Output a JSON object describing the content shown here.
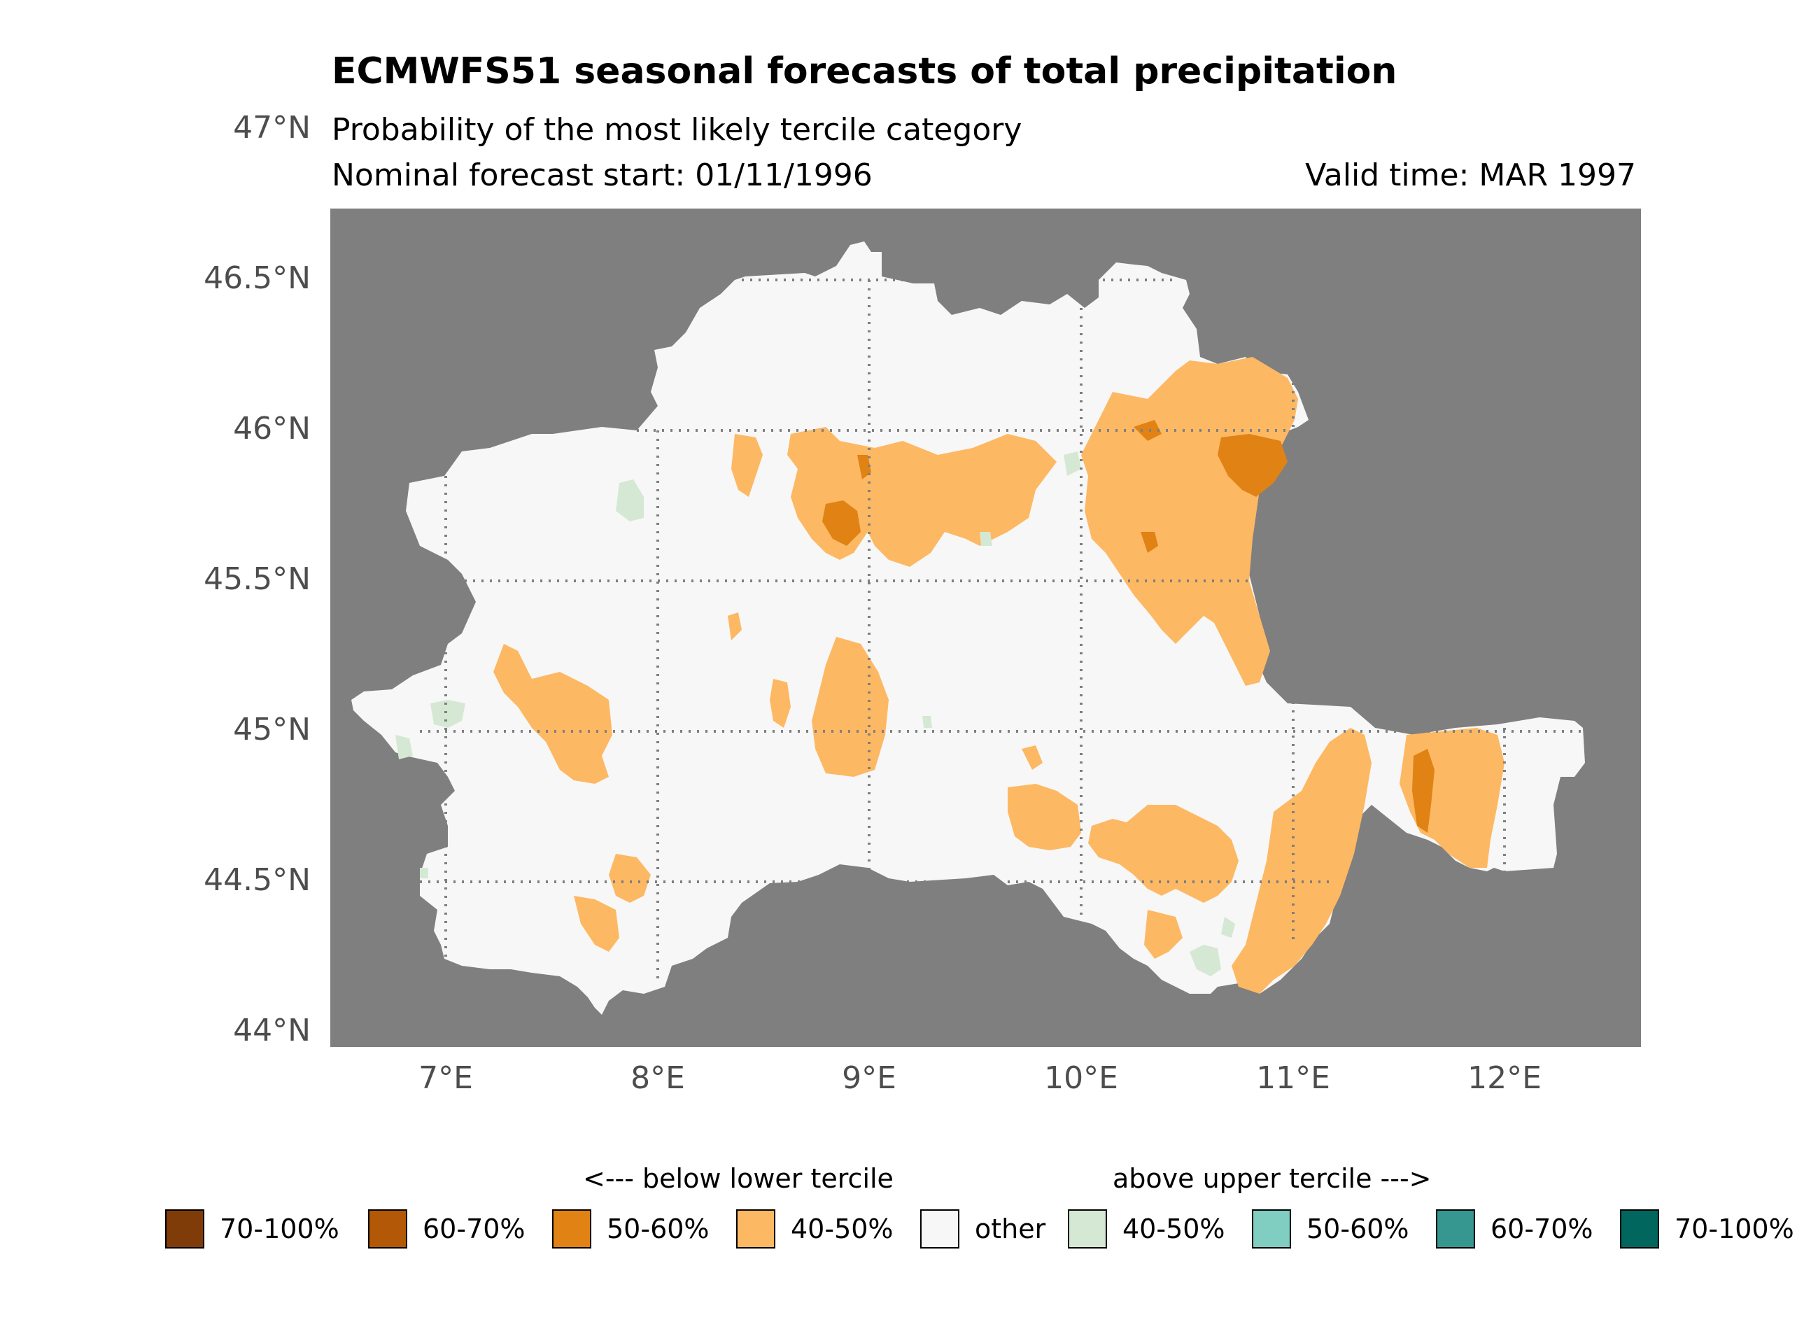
{
  "header": {
    "title": "ECMWFS51 seasonal forecasts of total precipitation",
    "subtitle": "Probability of the most likely tercile category",
    "forecast_start": "Nominal forecast start: 01/11/1996",
    "valid_time": "Valid time: MAR 1997"
  },
  "axes": {
    "lat_labels": [
      "47°N",
      "46.5°N",
      "46°N",
      "45.5°N",
      "45°N",
      "44.5°N",
      "44°N"
    ],
    "lon_labels": [
      "7°E",
      "8°E",
      "9°E",
      "10°E",
      "11°E",
      "12°E"
    ]
  },
  "map": {
    "background_color": "#7f7f7f",
    "region_color": "#f7f7f7",
    "gridlines": "dotted"
  },
  "legend": {
    "below_label": "<--- below lower tercile",
    "above_label": "above upper tercile --->",
    "items": [
      {
        "label": "70-100%",
        "color": "#7f3b08"
      },
      {
        "label": "60-70%",
        "color": "#b35806"
      },
      {
        "label": "50-60%",
        "color": "#e08214"
      },
      {
        "label": "40-50%",
        "color": "#fdb863"
      },
      {
        "label": "other",
        "color": "#f7f7f7"
      },
      {
        "label": "40-50%",
        "color": "#d5e8d4"
      },
      {
        "label": "50-60%",
        "color": "#80cdc1"
      },
      {
        "label": "60-70%",
        "color": "#35978f"
      },
      {
        "label": "70-100%",
        "color": "#01665e"
      }
    ]
  }
}
